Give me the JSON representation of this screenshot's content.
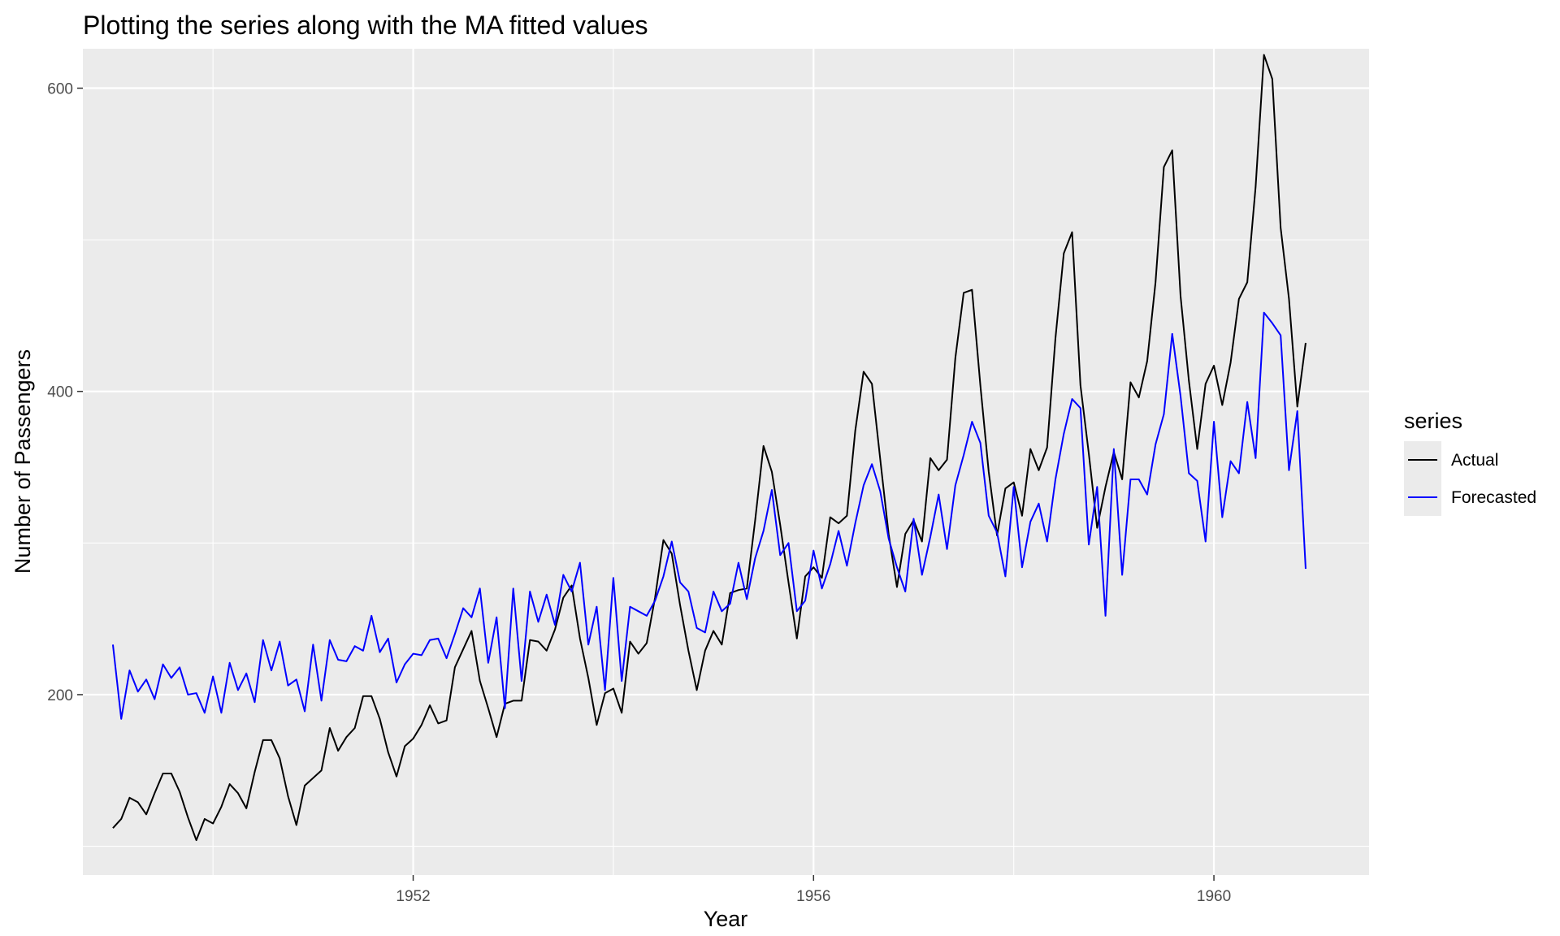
{
  "chart_data": {
    "type": "line",
    "title": "Plotting the series along with the MA fitted values",
    "xlabel": "Year",
    "ylabel": "Number of Passengers",
    "xlim": [
      1948.7,
      1961.55
    ],
    "ylim": [
      81,
      626
    ],
    "x_ticks": [
      1952,
      1956,
      1960
    ],
    "x_tick_labels": [
      "1952",
      "1956",
      "1960"
    ],
    "x_minor_ticks": [
      1950,
      1954,
      1958
    ],
    "y_ticks": [
      200,
      400,
      600
    ],
    "y_tick_labels": [
      "200",
      "400",
      "600"
    ],
    "y_minor_ticks": [
      100,
      300,
      500
    ],
    "grid": true,
    "background": "#ebebeb",
    "legend": {
      "title": "series",
      "position": "right"
    },
    "x_start": 1949,
    "x_step": 0.0833333333,
    "series": [
      {
        "name": "Actual",
        "color": "#000000",
        "values": [
          112,
          118,
          132,
          129,
          121,
          135,
          148,
          148,
          136,
          119,
          104,
          118,
          115,
          126,
          141,
          135,
          125,
          149,
          170,
          170,
          158,
          133,
          114,
          140,
          145,
          150,
          178,
          163,
          172,
          178,
          199,
          199,
          184,
          162,
          146,
          166,
          171,
          180,
          193,
          181,
          183,
          218,
          230,
          242,
          209,
          191,
          172,
          194,
          196,
          196,
          236,
          235,
          229,
          243,
          264,
          272,
          237,
          211,
          180,
          201,
          204,
          188,
          235,
          227,
          234,
          264,
          302,
          293,
          259,
          229,
          203,
          229,
          242,
          233,
          267,
          269,
          270,
          315,
          364,
          347,
          312,
          274,
          237,
          278,
          284,
          277,
          317,
          313,
          318,
          374,
          413,
          405,
          355,
          306,
          271,
          306,
          315,
          301,
          356,
          348,
          355,
          422,
          465,
          467,
          404,
          347,
          305,
          336,
          340,
          318,
          362,
          348,
          363,
          435,
          491,
          505,
          404,
          359,
          310,
          337,
          360,
          342,
          406,
          396,
          420,
          472,
          548,
          559,
          463,
          407,
          362,
          405,
          417,
          391,
          419,
          461,
          472,
          535,
          622,
          606,
          508,
          461,
          390,
          432
        ]
      },
      {
        "name": "Forecasted",
        "color": "#0000ff",
        "values": [
          233,
          184,
          216,
          202,
          210,
          197,
          220,
          211,
          218,
          200,
          201,
          188,
          212,
          188,
          221,
          203,
          214,
          195,
          236,
          216,
          235,
          206,
          210,
          189,
          233,
          196,
          236,
          223,
          222,
          232,
          229,
          252,
          228,
          237,
          208,
          220,
          227,
          226,
          236,
          237,
          224,
          240,
          257,
          251,
          270,
          221,
          251,
          191,
          270,
          209,
          268,
          248,
          266,
          246,
          279,
          268,
          287,
          233,
          258,
          203,
          277,
          209,
          258,
          255,
          252,
          262,
          278,
          301,
          274,
          268,
          244,
          241,
          268,
          255,
          260,
          287,
          263,
          290,
          308,
          335,
          292,
          300,
          255,
          262,
          295,
          270,
          286,
          308,
          285,
          313,
          338,
          352,
          334,
          303,
          284,
          268,
          316,
          279,
          304,
          332,
          296,
          338,
          358,
          380,
          366,
          318,
          307,
          278,
          337,
          284,
          314,
          326,
          301,
          342,
          372,
          395,
          389,
          299,
          337,
          252,
          362,
          279,
          342,
          342,
          332,
          365,
          385,
          438,
          397,
          346,
          341,
          301,
          380,
          317,
          354,
          346,
          393,
          356,
          452,
          445,
          437,
          348,
          387,
          283
        ]
      }
    ]
  }
}
